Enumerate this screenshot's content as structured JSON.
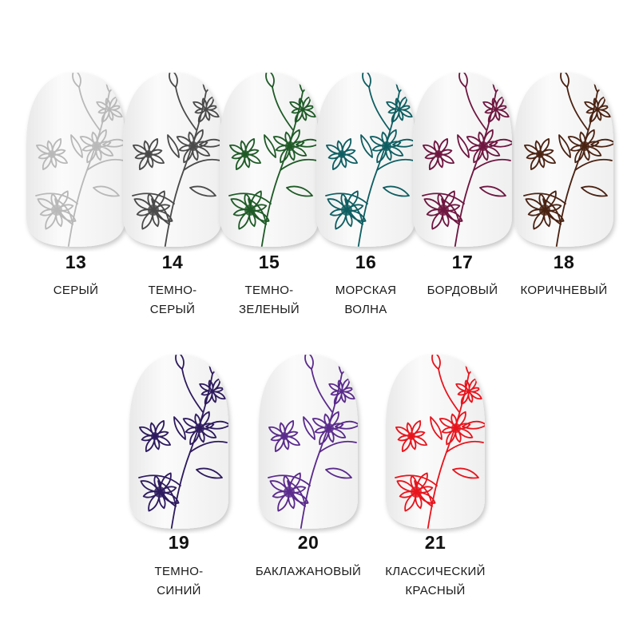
{
  "swatches": [
    {
      "number": "13",
      "name_line1": "СЕРЫЙ",
      "name_line2": "",
      "color": "#b8b8b8"
    },
    {
      "number": "14",
      "name_line1": "ТЕМНО-",
      "name_line2": "СЕРЫЙ",
      "color": "#4a4a4a"
    },
    {
      "number": "15",
      "name_line1": "ТЕМНО-",
      "name_line2": "ЗЕЛЕНЫЙ",
      "color": "#1e5a26"
    },
    {
      "number": "16",
      "name_line1": "МОРСКАЯ",
      "name_line2": "ВОЛНА",
      "color": "#0e5e62"
    },
    {
      "number": "17",
      "name_line1": "БОРДОВЫЙ",
      "name_line2": "",
      "color": "#6e1640"
    },
    {
      "number": "18",
      "name_line1": "КОРИЧНЕВЫЙ",
      "name_line2": "",
      "color": "#4a2212"
    },
    {
      "number": "19",
      "name_line1": "ТЕМНО-",
      "name_line2": "СИНИЙ",
      "color": "#2d1a5e"
    },
    {
      "number": "20",
      "name_line1": "БАКЛАЖАНОВЫЙ",
      "name_line2": "",
      "color": "#5a2a8c"
    },
    {
      "number": "21",
      "name_line1": "КЛАССИЧЕСКИЙ",
      "name_line2": "КРАСНЫЙ",
      "color": "#e8141c"
    }
  ]
}
